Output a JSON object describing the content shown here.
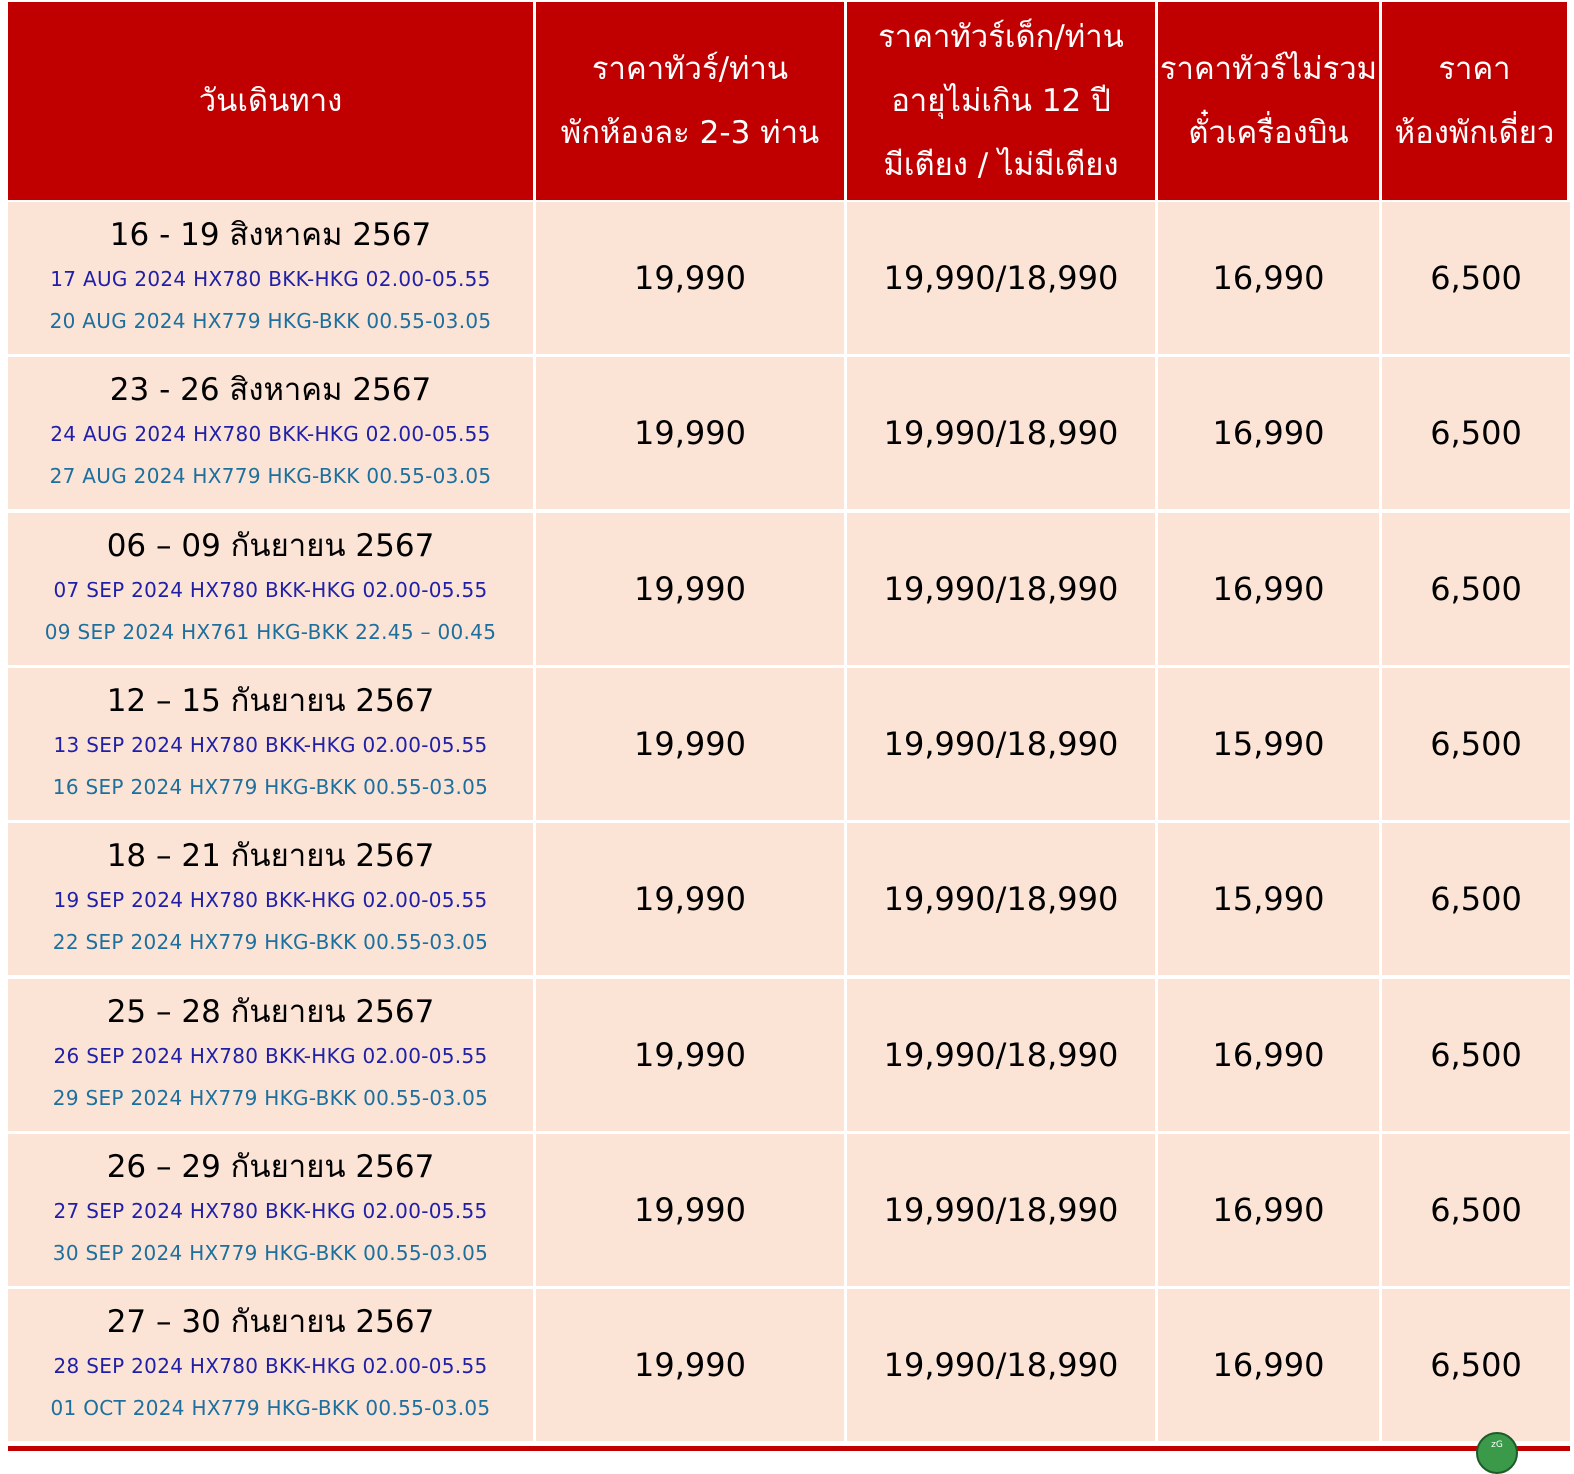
{
  "headers": [
    [
      "วันเดินทาง"
    ],
    [
      "ราคาทัวร์/ท่าน",
      "พักห้องละ 2-3 ท่าน"
    ],
    [
      "ราคาทัวร์เด็ก/ท่าน",
      "อายุไม่เกิน 12 ปี",
      "มีเตียง / ไม่มีเตียง"
    ],
    [
      "ราคาทัวร์ไม่รวม",
      "ตั๋วเครื่องบิน"
    ],
    [
      "ราคา",
      "ห้องพักเดี่ยว"
    ]
  ],
  "rows": [
    {
      "date": "16 - 19 สิงหาคม 2567",
      "flight_out": "17 AUG 2024 HX780 BKK-HKG 02.00-05.55",
      "flight_return": "20 AUG 2024 HX779 HKG-BKK 00.55-03.05",
      "adult": "19,990",
      "child": "19,990/18,990",
      "no_ticket": "16,990",
      "single": "6,500"
    },
    {
      "date": "23 - 26 สิงหาคม 2567",
      "flight_out": "24 AUG 2024 HX780 BKK-HKG 02.00-05.55",
      "flight_return": "27 AUG 2024 HX779 HKG-BKK 00.55-03.05",
      "adult": "19,990",
      "child": "19,990/18,990",
      "no_ticket": "16,990",
      "single": "6,500"
    },
    {
      "date": "06 – 09 กันยายน 2567",
      "flight_out": "07 SEP 2024 HX780 BKK-HKG 02.00-05.55",
      "flight_return": "09 SEP 2024 HX761 HKG-BKK 22.45 – 00.45",
      "adult": "19,990",
      "child": "19,990/18,990",
      "no_ticket": "16,990",
      "single": "6,500"
    },
    {
      "date": "12 – 15 กันยายน 2567",
      "flight_out": "13 SEP 2024 HX780 BKK-HKG 02.00-05.55",
      "flight_return": "16 SEP 2024 HX779 HKG-BKK 00.55-03.05",
      "adult": "19,990",
      "child": "19,990/18,990",
      "no_ticket": "15,990",
      "single": "6,500"
    },
    {
      "date": "18 – 21 กันยายน 2567",
      "flight_out": "19 SEP 2024 HX780 BKK-HKG 02.00-05.55",
      "flight_return": "22 SEP 2024 HX779 HKG-BKK 00.55-03.05",
      "adult": "19,990",
      "child": "19,990/18,990",
      "no_ticket": "15,990",
      "single": "6,500"
    },
    {
      "date": "25 – 28 กันยายน 2567",
      "flight_out": "26 SEP 2024 HX780 BKK-HKG 02.00-05.55",
      "flight_return": "29 SEP 2024 HX779 HKG-BKK 00.55-03.05",
      "adult": "19,990",
      "child": "19,990/18,990",
      "no_ticket": "16,990",
      "single": "6,500"
    },
    {
      "date": "26 – 29 กันยายน 2567",
      "flight_out": "27 SEP 2024 HX780 BKK-HKG 02.00-05.55",
      "flight_return": "30 SEP 2024 HX779 HKG-BKK 00.55-03.05",
      "adult": "19,990",
      "child": "19,990/18,990",
      "no_ticket": "16,990",
      "single": "6,500"
    },
    {
      "date": "27 – 30 กันยายน 2567",
      "flight_out": "28 SEP 2024 HX780 BKK-HKG 02.00-05.55",
      "flight_return": "01 OCT 2024 HX779 HKG-BKK 00.55-03.05",
      "adult": "19,990",
      "child": "19,990/18,990",
      "no_ticket": "16,990",
      "single": "6,500"
    }
  ],
  "logo_text": "zG",
  "colors": {
    "header_bg": "#c00000",
    "row_bg": "#fbe4d6",
    "flight_out": "#1f1fa8",
    "flight_return": "#1d6f9e"
  }
}
